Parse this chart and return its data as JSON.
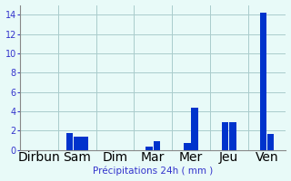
{
  "day_labels": [
    "Dirbun",
    "Sam",
    "Dim",
    "Mar",
    "Mer",
    "Jeu",
    "Ven"
  ],
  "bar_data": [
    [
      0
    ],
    [
      1.8,
      1.4,
      1.4
    ],
    [
      0
    ],
    [
      0.4,
      0.9
    ],
    [
      0.7,
      4.4
    ],
    [
      2.9,
      2.9
    ],
    [
      14.2,
      1.7
    ]
  ],
  "bar_color": "#0033cc",
  "background_color": "#e8faf8",
  "grid_color": "#aacccc",
  "xlabel": "Précipitations 24h ( mm )",
  "xlabel_color": "#3333cc",
  "tick_color": "#3333cc",
  "ylim": [
    0,
    15
  ],
  "yticks": [
    0,
    2,
    4,
    6,
    8,
    10,
    12,
    14
  ],
  "figsize": [
    3.2,
    2.0
  ],
  "dpi": 100,
  "spine_color": "#888888"
}
